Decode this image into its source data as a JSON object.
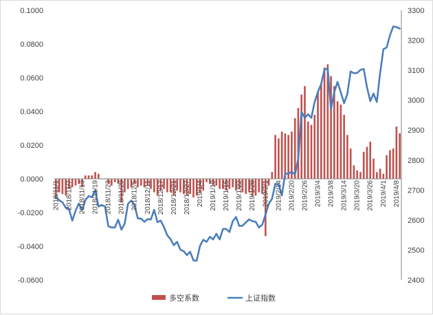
{
  "chart_data": {
    "type": "bar+line",
    "title": "",
    "legend": {
      "position": "bottom",
      "entries": [
        "多空系数",
        "上证指数"
      ]
    },
    "x": [
      "2018/11/1",
      "2018/11/2",
      "2018/11/5",
      "2018/11/6",
      "2018/11/7",
      "2018/11/8",
      "2018/11/9",
      "2018/11/12",
      "2018/11/13",
      "2018/11/14",
      "2018/11/15",
      "2018/11/16",
      "2018/11/19",
      "2018/11/20",
      "2018/11/21",
      "2018/11/22",
      "2018/11/23",
      "2018/11/26",
      "2018/11/27",
      "2018/11/28",
      "2018/11/29",
      "2018/11/30",
      "2018/12/3",
      "2018/12/4",
      "2018/12/5",
      "2018/12/6",
      "2018/12/7",
      "2018/12/10",
      "2018/12/11",
      "2018/12/12",
      "2018/12/13",
      "2018/12/14",
      "2018/12/17",
      "2018/12/18",
      "2018/12/19",
      "2018/12/20",
      "2018/12/21",
      "2018/12/24",
      "2018/12/25",
      "2018/12/26",
      "2018/12/27",
      "2018/12/28",
      "2019/1/2",
      "2019/1/3",
      "2019/1/4",
      "2019/1/7",
      "2019/1/8",
      "2019/1/9",
      "2019/1/10",
      "2019/1/11",
      "2019/1/14",
      "2019/1/15",
      "2019/1/16",
      "2019/1/17",
      "2019/1/18",
      "2019/1/21",
      "2019/1/22",
      "2019/1/23",
      "2019/1/24",
      "2019/1/25",
      "2019/1/28",
      "2019/1/29",
      "2019/1/30",
      "2019/1/31",
      "2019/2/1",
      "2019/2/11",
      "2019/2/12",
      "2019/2/13",
      "2019/2/14",
      "2019/2/15",
      "2019/2/18",
      "2019/2/19",
      "2019/2/20",
      "2019/2/21",
      "2019/2/22",
      "2019/2/25",
      "2019/2/26",
      "2019/2/27",
      "2019/2/28",
      "2019/3/1",
      "2019/3/4",
      "2019/3/5",
      "2019/3/6",
      "2019/3/7",
      "2019/3/8",
      "2019/3/11",
      "2019/3/12",
      "2019/3/13",
      "2019/3/14",
      "2019/3/15",
      "2019/3/18",
      "2019/3/19",
      "2019/3/20",
      "2019/3/21",
      "2019/3/22",
      "2019/3/25",
      "2019/3/26",
      "2019/3/27",
      "2019/3/28",
      "2019/3/29",
      "2019/4/1",
      "2019/4/2",
      "2019/4/3",
      "2019/4/4",
      "2019/4/8",
      "2019/4/9"
    ],
    "x_tick_labels": [
      "2018/11/1",
      "2018/11/7",
      "2018/11/13",
      "2018/11/19",
      "2018/11/23",
      "2018/11/29",
      "2018/12/5",
      "2018/12/11",
      "2018/12/17",
      "2018/12/21",
      "2018/12/27",
      "2019/1/4",
      "2019/1/10",
      "2019/1/16",
      "2019/1/22",
      "2019/1/28",
      "2019/2/1",
      "2019/2/14",
      "2019/2/20",
      "2019/2/26",
      "2019/3/4",
      "2019/3/8",
      "2019/3/14",
      "2019/3/20",
      "2019/3/26",
      "2019/4/1",
      "2019/4/8"
    ],
    "y_left": {
      "ticks": [
        "0.1000",
        "0.0800",
        "0.0600",
        "0.0400",
        "0.0200",
        "0.0000",
        "-0.0200",
        "-0.0400",
        "-0.0600"
      ],
      "min": -0.06,
      "max": 0.1,
      "step": 0.02
    },
    "y_right": {
      "ticks": [
        "3300",
        "3200",
        "3100",
        "3000",
        "2900",
        "2800",
        "2700",
        "2600",
        "2500",
        "2400"
      ],
      "min": 2400,
      "max": 3300,
      "step": 100
    },
    "series": [
      {
        "name": "多空系数",
        "type": "bar",
        "axis": "left",
        "color": "#c0504d",
        "values": [
          -0.012,
          -0.008,
          -0.009,
          -0.01,
          -0.006,
          -0.005,
          -0.004,
          -0.003,
          -0.005,
          0.002,
          0.002,
          0.002,
          0.004,
          0.003,
          0.0,
          0.0,
          -0.003,
          -0.004,
          -0.002,
          -0.003,
          -0.014,
          -0.008,
          -0.006,
          -0.005,
          -0.003,
          -0.005,
          -0.004,
          -0.005,
          -0.004,
          -0.006,
          -0.008,
          -0.01,
          -0.007,
          -0.006,
          -0.008,
          -0.008,
          -0.01,
          -0.007,
          -0.008,
          -0.009,
          -0.01,
          -0.009,
          -0.011,
          -0.01,
          -0.008,
          -0.007,
          -0.002,
          -0.003,
          -0.004,
          -0.004,
          -0.006,
          -0.006,
          -0.007,
          -0.006,
          -0.005,
          -0.007,
          -0.006,
          -0.008,
          -0.009,
          -0.008,
          -0.01,
          -0.01,
          -0.008,
          -0.009,
          -0.034,
          -0.004,
          0.004,
          0.026,
          0.024,
          0.028,
          0.027,
          0.026,
          0.028,
          0.036,
          0.042,
          0.05,
          0.055,
          0.034,
          0.032,
          0.038,
          0.052,
          0.057,
          0.066,
          0.068,
          0.061,
          0.055,
          0.046,
          0.044,
          0.038,
          0.026,
          0.018,
          0.008,
          0.005,
          0.004,
          0.016,
          0.019,
          0.022,
          0.012,
          0.004,
          0.006,
          0.003,
          0.014,
          0.017,
          0.018,
          0.031,
          0.027
        ]
      },
      {
        "name": "上证指数",
        "type": "line",
        "axis": "right",
        "color": "#4a7ebb",
        "values": [
          2676,
          2666,
          2659,
          2641,
          2635,
          2598,
          2631,
          2655,
          2633,
          2667,
          2680,
          2676,
          2700,
          2645,
          2650,
          2645,
          2579,
          2575,
          2575,
          2601,
          2568,
          2588,
          2654,
          2665,
          2650,
          2605,
          2605,
          2594,
          2603,
          2602,
          2634,
          2593,
          2598,
          2576,
          2549,
          2536,
          2516,
          2527,
          2501,
          2496,
          2483,
          2494,
          2465,
          2464,
          2514,
          2534,
          2527,
          2544,
          2535,
          2554,
          2535,
          2570,
          2570,
          2560,
          2596,
          2610,
          2580,
          2581,
          2592,
          2602,
          2596,
          2594,
          2575,
          2584,
          2618,
          2654,
          2671,
          2721,
          2719,
          2682,
          2754,
          2755,
          2761,
          2752,
          2804,
          2961,
          2941,
          2953,
          2941,
          2994,
          3027,
          3054,
          3102,
          3106,
          2969,
          3027,
          3061,
          3026,
          2990,
          3021,
          3096,
          3090,
          3091,
          3101,
          3104,
          3043,
          2997,
          3022,
          2994,
          3090,
          3170,
          3176,
          3216,
          3246,
          3244,
          3239
        ]
      }
    ]
  }
}
